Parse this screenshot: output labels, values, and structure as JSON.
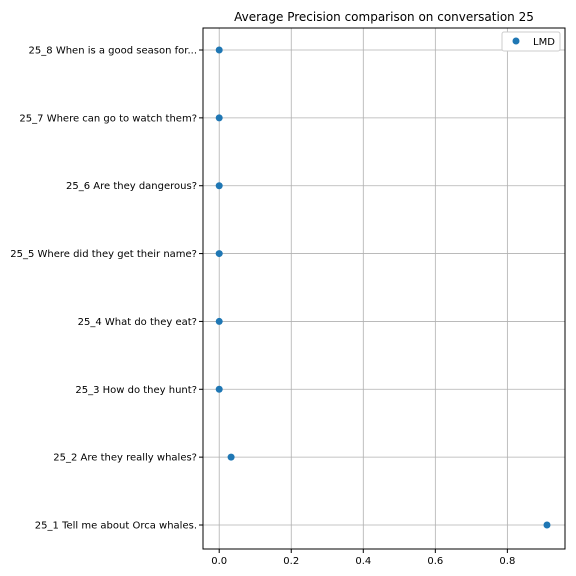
{
  "chart_data": {
    "type": "scatter",
    "title": "Average Precision comparison on conversation 25",
    "xlabel": "",
    "ylabel": "",
    "xlim": [
      -0.045,
      0.96
    ],
    "xticks": [
      0.0,
      0.2,
      0.4,
      0.6,
      0.8
    ],
    "xtick_labels": [
      "0.0",
      "0.2",
      "0.4",
      "0.6",
      "0.8"
    ],
    "categories": [
      "25_1 Tell me about Orca whales.",
      "25_2 Are they really whales?",
      "25_3 How do they hunt?",
      "25_4 What do they eat?",
      "25_5 Where did they get their name?",
      "25_6 Are they dangerous?",
      "25_7 Where can go to watch them?",
      "25_8 When is a good season for..."
    ],
    "series": [
      {
        "name": "LMD",
        "color": "#1f77b4",
        "values": [
          0.91,
          0.033,
          0.0,
          0.0,
          0.0,
          0.0,
          0.0,
          0.0
        ]
      }
    ],
    "grid": true,
    "legend": "top-right"
  }
}
